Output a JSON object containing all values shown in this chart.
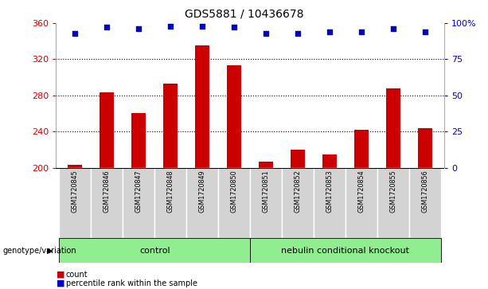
{
  "title": "GDS5881 / 10436678",
  "samples": [
    "GSM1720845",
    "GSM1720846",
    "GSM1720847",
    "GSM1720848",
    "GSM1720849",
    "GSM1720850",
    "GSM1720851",
    "GSM1720852",
    "GSM1720853",
    "GSM1720854",
    "GSM1720855",
    "GSM1720856"
  ],
  "counts": [
    203,
    283,
    260,
    293,
    335,
    313,
    207,
    220,
    215,
    242,
    288,
    244
  ],
  "percentiles": [
    93,
    97,
    96,
    98,
    98,
    97,
    93,
    93,
    94,
    94,
    96,
    94
  ],
  "ylim_left": [
    200,
    360
  ],
  "ylim_right": [
    0,
    100
  ],
  "yticks_left": [
    200,
    240,
    280,
    320,
    360
  ],
  "yticks_right": [
    0,
    25,
    50,
    75,
    100
  ],
  "yticklabels_right": [
    "0",
    "25",
    "50",
    "75",
    "100%"
  ],
  "bar_color": "#cc0000",
  "dot_color": "#0000cc",
  "grid_color": "#000000",
  "n_control": 6,
  "n_knockout": 6,
  "control_label": "control",
  "knockout_label": "nebulin conditional knockout",
  "group_label": "genotype/variation",
  "legend_count": "count",
  "legend_percentile": "percentile rank within the sample",
  "bg_plot": "#ffffff",
  "bg_xtick": "#d3d3d3",
  "bg_control": "#90ee90",
  "bg_knockout": "#90ee90",
  "grid_lines": [
    240,
    280,
    320
  ]
}
